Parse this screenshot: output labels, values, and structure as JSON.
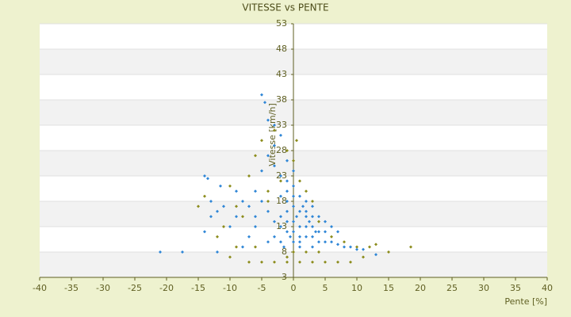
{
  "chart_data": {
    "type": "scatter",
    "title": "VITESSE vs PENTE",
    "x_label": "Pente [%]",
    "y_label": "Vitesse [km/h]",
    "xlim": [
      -40,
      40
    ],
    "xticks": [
      -40,
      -35,
      -30,
      -25,
      -20,
      -15,
      -10,
      -5,
      0,
      5,
      10,
      15,
      20,
      25,
      30,
      35,
      40
    ],
    "ylim": [
      3,
      53
    ],
    "yticks": [
      3,
      8,
      13,
      18,
      23,
      28,
      33,
      38,
      43,
      48,
      53
    ],
    "grid": true,
    "band_colors": [
      "#ffffff",
      "#f2f2f2"
    ],
    "series": [
      {
        "color": "#2f86d6",
        "x": [
          -21,
          -17.5,
          -5,
          -4.5,
          -4,
          -14,
          -13.5,
          -11.5,
          -14,
          -13,
          -12,
          -10,
          -9,
          -7,
          -8,
          -6,
          -5,
          -4,
          -3,
          -2,
          -3,
          -2,
          -1,
          0,
          -1,
          1,
          2,
          0,
          -1,
          1,
          2,
          3,
          -2,
          0,
          1,
          2,
          3,
          4,
          5,
          3,
          2,
          1,
          0,
          -1,
          -2,
          -3,
          -4,
          -5,
          -6,
          -3,
          -2,
          0,
          1,
          4,
          5,
          6,
          7,
          8,
          9,
          10,
          11,
          13,
          6,
          7,
          4,
          5,
          3,
          2,
          -1,
          -2,
          0,
          -1,
          0.5,
          1.5,
          2.5,
          3.5,
          -0.5,
          -1.5,
          -4,
          -7,
          -8,
          -12,
          -6,
          -9,
          -3,
          -1,
          0,
          1,
          3,
          -13,
          -11
        ],
        "values": [
          8,
          8,
          39,
          37.5,
          34,
          23,
          22.5,
          21,
          12,
          15,
          16,
          13,
          15,
          17,
          18,
          20,
          24,
          27,
          29,
          31,
          25,
          23,
          22,
          21,
          20,
          19,
          18,
          17,
          16,
          16,
          15,
          15,
          15,
          14,
          13,
          13,
          13,
          12,
          12,
          11,
          11,
          11,
          12,
          12,
          13,
          14,
          16,
          18,
          15,
          11,
          10,
          10,
          10,
          10,
          10,
          10,
          9.5,
          9,
          9,
          8.5,
          8.5,
          7.5,
          13,
          12,
          15,
          14,
          17,
          16,
          18,
          19,
          19,
          14,
          15,
          17,
          14,
          12,
          11,
          9,
          10,
          11,
          9,
          8,
          13,
          20,
          33,
          26,
          24,
          9,
          9,
          18,
          17
        ]
      },
      {
        "color": "#8c8c1c",
        "x": [
          -15,
          -14,
          -10,
          -7,
          -6,
          -5,
          -3,
          -1,
          0,
          1,
          2,
          3,
          4,
          6,
          8,
          10,
          12,
          13,
          18.5,
          15,
          11,
          9,
          7,
          5,
          3,
          1,
          -1,
          -3,
          -5,
          -7,
          -9,
          -10,
          -12,
          -8,
          -4,
          -2,
          0,
          -1,
          2,
          4,
          -6,
          -11,
          -9,
          0.5,
          -4
        ],
        "values": [
          17,
          19,
          21,
          23,
          27,
          30,
          32,
          28,
          26,
          22,
          20,
          18,
          14,
          11,
          10,
          9,
          9,
          9.5,
          9,
          8,
          7,
          6,
          6,
          6,
          6,
          6,
          6,
          6,
          6,
          6,
          9,
          7,
          11,
          15,
          20,
          22,
          8,
          7,
          8,
          8,
          9,
          13,
          17,
          30,
          18
        ]
      }
    ]
  }
}
